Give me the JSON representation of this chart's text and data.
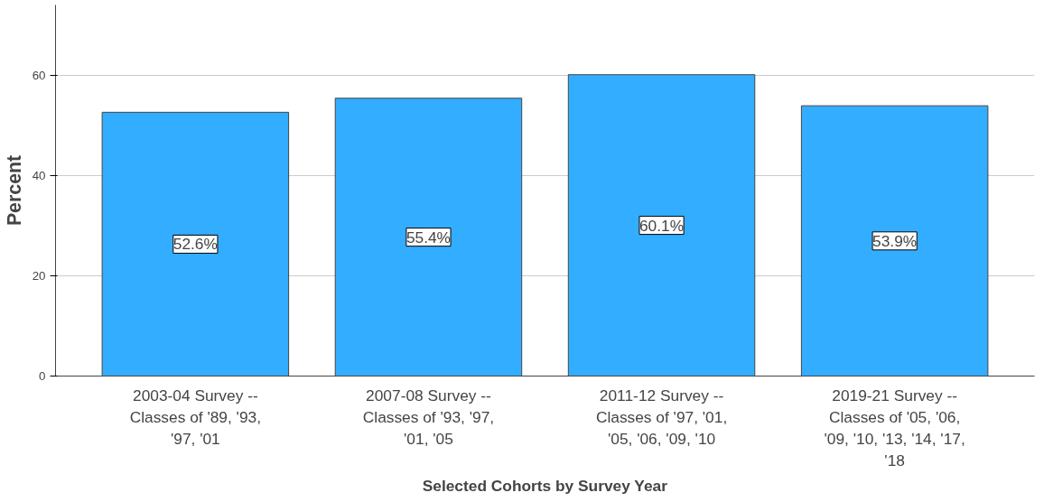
{
  "chart_data": {
    "type": "bar",
    "xlabel": "Selected Cohorts by Survey Year",
    "ylabel": "Percent",
    "categories": [
      "2003-04 Survey -- Classes of '89, '93, '97, '01",
      "2007-08 Survey -- Classes of '93, '97, '01, '05",
      "2011-12 Survey -- Classes of '97, '01, '05, '06, '09, '10",
      "2019-21 Survey -- Classes of '05, '06, '09, '10, '13, '14, '17, '18"
    ],
    "values": [
      52.6,
      55.4,
      60.1,
      53.9
    ],
    "value_labels": [
      "52.6%",
      "55.4%",
      "60.1%",
      "53.9%"
    ],
    "color": "#33adff",
    "ylim": [
      0,
      74
    ],
    "yticks": [
      0,
      20,
      40,
      60
    ],
    "grid": "y"
  }
}
